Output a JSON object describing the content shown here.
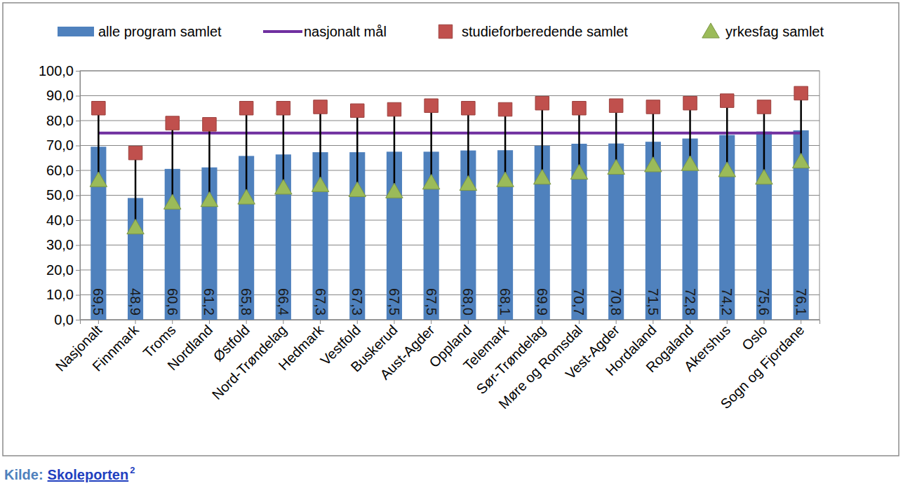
{
  "chart_data": {
    "type": "bar",
    "categories": [
      "Nasjonalt",
      "Finnmark",
      "Troms",
      "Nordland",
      "Østfold",
      "Nord-Trøndelag",
      "Hedmark",
      "Vestfold",
      "Buskerud",
      "Aust-Agder",
      "Oppland",
      "Telemark",
      "Sør-Trøndelag",
      "Møre og Romsdal",
      "Vest-Agder",
      "Hordaland",
      "Rogaland",
      "Akershus",
      "Oslo",
      "Sogn og Fjordane"
    ],
    "series": [
      {
        "name": "alle program samlet",
        "type": "bar",
        "color": "#4f81bd",
        "values": [
          69.5,
          48.9,
          60.6,
          61.2,
          65.8,
          66.4,
          67.3,
          67.3,
          67.5,
          67.5,
          68.0,
          68.1,
          69.9,
          70.7,
          70.8,
          71.5,
          72.8,
          74.2,
          75.6,
          76.1
        ],
        "value_labels": [
          "69,5",
          "48,9",
          "60,6",
          "61,2",
          "65,8",
          "66,4",
          "67,3",
          "67,3",
          "67,5",
          "67,5",
          "68,0",
          "68,1",
          "69,9",
          "70,7",
          "70,8",
          "71,5",
          "72,8",
          "74,2",
          "75,6",
          "76,1"
        ]
      },
      {
        "name": "nasjonalt mål",
        "type": "line",
        "color": "#7030a0",
        "line_style": "solid",
        "values": [
          75,
          75,
          75,
          75,
          75,
          75,
          75,
          75,
          75,
          75,
          75,
          75,
          75,
          75,
          75,
          75,
          75,
          75,
          75,
          75
        ]
      },
      {
        "name": "studieforberedende samlet",
        "type": "scatter",
        "marker": "square",
        "color": "#c0504d",
        "values": [
          85,
          67,
          79,
          78.5,
          85,
          85,
          85.5,
          84,
          84.5,
          86,
          85,
          84.5,
          87,
          85,
          86,
          85.5,
          87,
          88,
          85.5,
          91
        ]
      },
      {
        "name": "yrkesfag samlet",
        "type": "scatter",
        "marker": "triangle",
        "color": "#9bbb59",
        "values": [
          56,
          37,
          47,
          48,
          49,
          53,
          54,
          52,
          51.5,
          55,
          54.5,
          56,
          57,
          59,
          61,
          62,
          62.5,
          60,
          57,
          63.5
        ]
      }
    ],
    "ylim": [
      0,
      100
    ],
    "yticks": [
      {
        "value": 0,
        "label": "0,0"
      },
      {
        "value": 10,
        "label": "10,0"
      },
      {
        "value": 20,
        "label": "20,0"
      },
      {
        "value": 30,
        "label": "30,0"
      },
      {
        "value": 40,
        "label": "40,0"
      },
      {
        "value": 50,
        "label": "50,0"
      },
      {
        "value": 60,
        "label": "60,0"
      },
      {
        "value": 70,
        "label": "70,0"
      },
      {
        "value": 80,
        "label": "80,0"
      },
      {
        "value": 90,
        "label": "90,0"
      },
      {
        "value": 100,
        "label": "100,0"
      }
    ],
    "grid": true,
    "legend": "top",
    "data_labels": true,
    "source": "Kilde:",
    "source_link": "Skoleporten",
    "source_note": "2"
  }
}
